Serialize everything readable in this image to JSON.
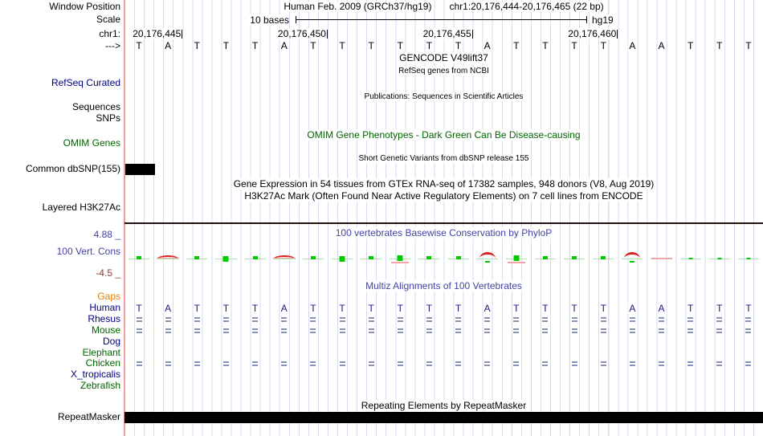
{
  "header": {
    "left_label": "Window Position",
    "assembly_title": "Human Feb. 2009 (GRCh37/hg19)",
    "position_title": "chr1:20,176,444-20,176,465 (22 bp)"
  },
  "scale": {
    "left_label": "Scale",
    "label": "10 bases",
    "right_label": "hg19"
  },
  "ruler": {
    "left_label": "chr1:",
    "ticks": [
      {
        "label": "20,176,445",
        "boundary": 2
      },
      {
        "label": "20,176,450",
        "boundary": 7
      },
      {
        "label": "20,176,455",
        "boundary": 12
      },
      {
        "label": "20,176,460",
        "boundary": 17
      }
    ]
  },
  "sequence": {
    "left_label": "--->",
    "bases": [
      "T",
      "A",
      "T",
      "T",
      "T",
      "A",
      "T",
      "T",
      "T",
      "T",
      "T",
      "T",
      "A",
      "T",
      "T",
      "T",
      "T",
      "A",
      "A",
      "T",
      "T",
      "T"
    ]
  },
  "tracks": {
    "gencode_title": "GENCODE V49lift37",
    "refseq_title": "RefSeq genes from NCBI",
    "refseq_label": "RefSeq Curated",
    "publications_title": "Publications: Sequences in Scientific Articles",
    "sequences_label": "Sequences",
    "snps_label": "SNPs",
    "omim_title": "OMIM Gene Phenotypes - Dark Green Can Be Disease-causing",
    "omim_label": "OMIM Genes",
    "dbsnp_title": "Short Genetic Variants from dbSNP release 155",
    "dbsnp_label": "Common dbSNP(155)",
    "gtex_title": "Gene Expression in 54 tissues from GTEx RNA-seq of 17382 samples, 948 donors (V8, Aug 2019)",
    "h3k27ac_title": "H3K27Ac Mark (Often Found Near Active Regulatory Elements) on 7 cell lines from ENCODE",
    "h3k27ac_label": "Layered H3K27Ac"
  },
  "conservation": {
    "title": "100 vertebrates Basewise Conservation by PhyloP",
    "left_label": "100 Vert. Cons",
    "max_label": "4.88 _",
    "min_label": "-4.5 _",
    "marks": [
      "sq-sm",
      "arc-flat",
      "sq-sm",
      "sq-md",
      "sq-sm",
      "arc-flat",
      "sq-sm",
      "sq-md",
      "sq-sm",
      "sq-line",
      "sq-sm",
      "sq-sm",
      "arc",
      "sq-line",
      "sq-sm",
      "sq-sm",
      "sq-sm",
      "arc",
      "line",
      "sq-tiny",
      "sq-tiny",
      "sq-tiny"
    ]
  },
  "multiz": {
    "title": "Multiz Alignments of 100 Vertebrates",
    "rows": [
      {
        "label": "Gaps",
        "color": "#e08000",
        "cells": ""
      },
      {
        "label": "Human",
        "color": "#000080",
        "cells": "seq"
      },
      {
        "label": "Rhesus",
        "color": "#000080",
        "cells": "eq"
      },
      {
        "label": "Mouse",
        "color": "#006400",
        "cells": "eq"
      },
      {
        "label": "Dog",
        "color": "#000080",
        "cells": "dash"
      },
      {
        "label": "Elephant",
        "color": "#006400",
        "cells": "dash"
      },
      {
        "label": "Chicken",
        "color": "#006400",
        "cells": "eq"
      },
      {
        "label": "X_tropicalis",
        "color": "#000080",
        "cells": ""
      },
      {
        "label": "Zebrafish",
        "color": "#006400",
        "cells": ""
      }
    ]
  },
  "repeat": {
    "title": "Repeating Elements by RepeatMasker",
    "label": "RepeatMasker"
  },
  "colors": {
    "gridline": "#d9d9f2",
    "border_line": "#f49c9c",
    "track_label_navy": "#000080",
    "track_label_green": "#006400",
    "cons_blue": "#4343a5",
    "cons_maroon": "#8b3a3a",
    "gaps_orange": "#e08000",
    "pos_mark": "#00cc00",
    "neg_mark": "#dd2222",
    "feature_black": "#000000"
  }
}
